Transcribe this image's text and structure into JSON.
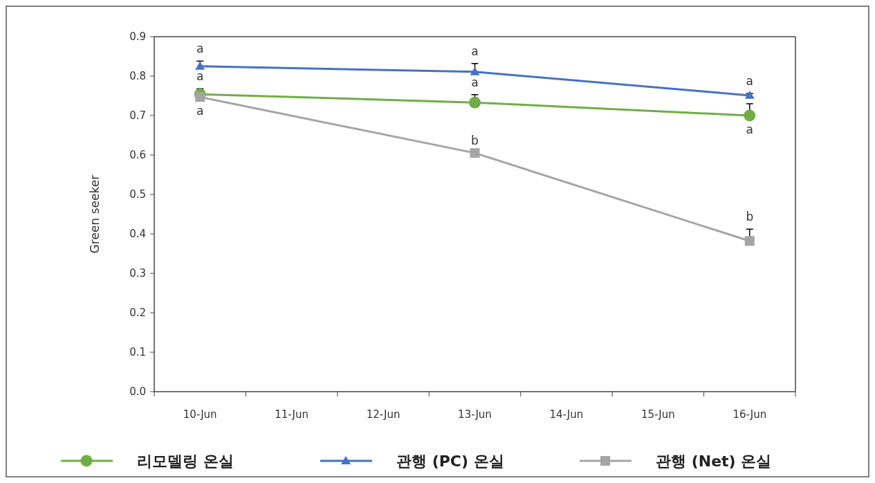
{
  "chart_data": {
    "type": "line",
    "ylabel": "Green seeker",
    "categories": [
      "10-Jun",
      "11-Jun",
      "12-Jun",
      "13-Jun",
      "14-Jun",
      "15-Jun",
      "16-Jun"
    ],
    "ylim": [
      0,
      0.9
    ],
    "yticks": [
      {
        "value": 0,
        "label": "0.0"
      },
      0.1,
      0.2,
      0.3,
      0.4,
      0.5,
      0.6,
      0.7,
      0.8,
      0.9
    ],
    "grid": false,
    "legend": "bottom",
    "series": [
      {
        "name": "리모델링 온실",
        "color": "#70ad47",
        "marker": "circle",
        "values": [
          0.754,
          null,
          null,
          0.733,
          null,
          null,
          0.7
        ],
        "errors": [
          [
            0.754,
            0.768
          ],
          null,
          null,
          [
            0.733,
            0.753
          ],
          null,
          null,
          [
            0.7,
            0.73
          ]
        ]
      },
      {
        "name": "관행 (PC) 온실",
        "color": "#4472c4",
        "marker": "triangle",
        "values": [
          0.825,
          null,
          null,
          0.811,
          null,
          null,
          0.751
        ],
        "errors": [
          [
            0.825,
            0.838
          ],
          null,
          null,
          [
            0.811,
            0.832
          ],
          null,
          null,
          [
            0.751,
            0.756
          ]
        ]
      },
      {
        "name": "관행 (Net) 온실",
        "color": "#a5a5a5",
        "marker": "square",
        "values": [
          0.747,
          null,
          null,
          0.605,
          null,
          null,
          0.382
        ],
        "errors": [
          null,
          null,
          null,
          null,
          null,
          null,
          [
            0.382,
            0.412
          ]
        ]
      }
    ],
    "annotations": [
      {
        "text": "a",
        "x": "10-Jun",
        "y": 0.825
      },
      {
        "text": "a",
        "x": "10-Jun",
        "y": 0.754
      },
      {
        "text": "a",
        "x": "10-Jun",
        "y": 0.747
      },
      {
        "text": "a",
        "x": "13-Jun",
        "y": 0.811
      },
      {
        "text": "a",
        "x": "13-Jun",
        "y": 0.733
      },
      {
        "text": "b",
        "x": "13-Jun",
        "y": 0.605
      },
      {
        "text": "a",
        "x": "16-Jun",
        "y": 0.751
      },
      {
        "text": "a",
        "x": "16-Jun",
        "y": 0.7
      },
      {
        "text": "b",
        "x": "16-Jun",
        "y": 0.382
      }
    ]
  }
}
